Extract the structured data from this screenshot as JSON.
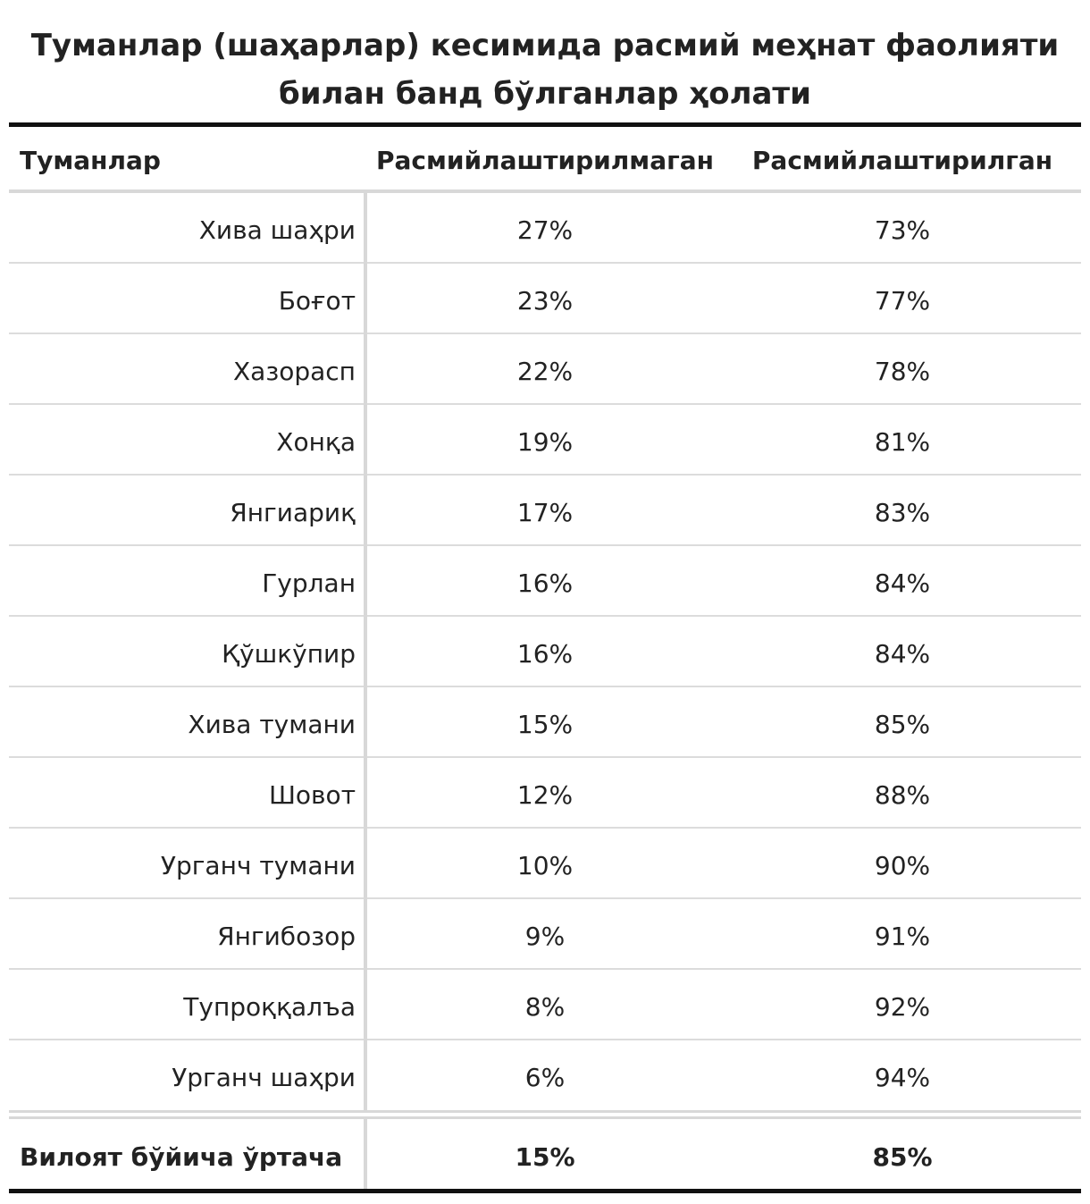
{
  "chart_data": {
    "type": "table",
    "title": "Туманлар (шаҳарлар) кесимида расмий меҳнат фаолияти билан банд бўлганлар ҳолати",
    "title_lines": [
      "Туманлар (шаҳарлар) кесимида расмий меҳнат фаолияти",
      "билан банд бўлганлар ҳолати"
    ],
    "columns": [
      "Туманлар",
      "Расмийлаштирилмаган",
      "Расмийлаштирилган"
    ],
    "rows": [
      {
        "district": "Хива шаҳри",
        "informal": "27%",
        "formal": "73%"
      },
      {
        "district": "Боғот",
        "informal": "23%",
        "formal": "77%"
      },
      {
        "district": "Хазорасп",
        "informal": "22%",
        "formal": "78%"
      },
      {
        "district": "Хонқа",
        "informal": "19%",
        "formal": "81%"
      },
      {
        "district": "Янгиариқ",
        "informal": "17%",
        "formal": "83%"
      },
      {
        "district": "Гурлан",
        "informal": "16%",
        "formal": "84%"
      },
      {
        "district": "Қўшкўпир",
        "informal": "16%",
        "formal": "84%"
      },
      {
        "district": "Хива тумани",
        "informal": "15%",
        "formal": "85%"
      },
      {
        "district": "Шовот",
        "informal": "12%",
        "formal": "88%"
      },
      {
        "district": "Урганч тумани",
        "informal": "10%",
        "formal": "90%"
      },
      {
        "district": "Янгибозор",
        "informal": "9%",
        "formal": "91%"
      },
      {
        "district": "Тупроққалъа",
        "informal": "8%",
        "formal": "92%"
      },
      {
        "district": "Урганч шаҳри",
        "informal": "6%",
        "formal": "94%"
      }
    ],
    "total": {
      "label": "Вилоят бўйича ўртача",
      "informal": "15%",
      "formal": "85%"
    }
  }
}
